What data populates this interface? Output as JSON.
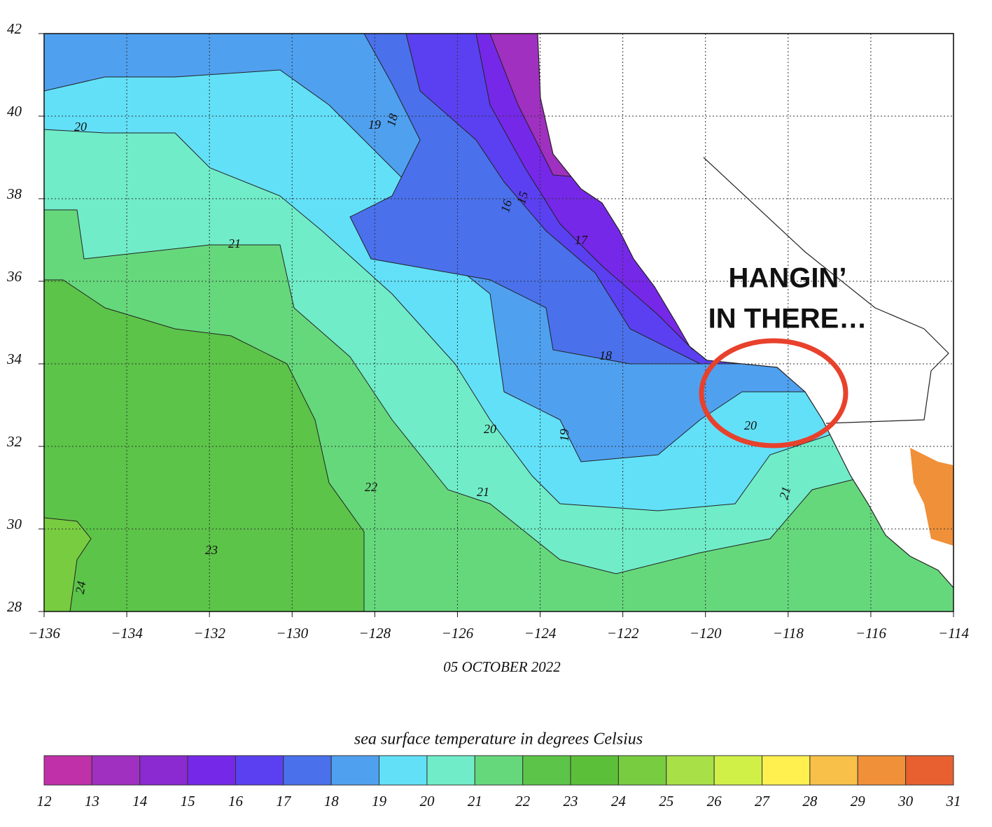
{
  "map": {
    "xlim": [
      -136,
      -114
    ],
    "ylim": [
      28,
      42
    ],
    "xticks": [
      {
        "value": -136,
        "label": "−136"
      },
      {
        "value": -134,
        "label": "−134"
      },
      {
        "value": -132,
        "label": "−132"
      },
      {
        "value": -130,
        "label": "−130"
      },
      {
        "value": -128,
        "label": "−128"
      },
      {
        "value": -126,
        "label": "−126"
      },
      {
        "value": -124,
        "label": "−124"
      },
      {
        "value": -122,
        "label": "−122"
      },
      {
        "value": -120,
        "label": "−120"
      },
      {
        "value": -118,
        "label": "−118"
      },
      {
        "value": -116,
        "label": "−116"
      },
      {
        "value": -114,
        "label": "−114"
      }
    ],
    "yticks": [
      28,
      30,
      32,
      34,
      36,
      38,
      40,
      42
    ],
    "grid": true,
    "date": "05 OCTOBER 2022",
    "contour_labels": [
      20,
      19,
      18,
      16,
      15,
      17,
      21,
      18,
      20,
      19,
      20,
      22,
      21,
      21,
      23,
      24
    ],
    "annotation": [
      "HANGIN’",
      "IN THERE…"
    ]
  },
  "colorbar": {
    "title": "sea surface temperature in degrees Celsius",
    "bounds": [
      12,
      13,
      14,
      15,
      16,
      17,
      18,
      19,
      20,
      21,
      22,
      23,
      24,
      25,
      26,
      27,
      28,
      29,
      30,
      31
    ],
    "colors": [
      "#c030a8",
      "#a030c0",
      "#8a2ad0",
      "#7628e8",
      "#5a40f0",
      "#4a70ec",
      "#50a0f0",
      "#62e0f8",
      "#70ecc8",
      "#66d87c",
      "#5cc448",
      "#5cbf3a",
      "#78cc40",
      "#a8e048",
      "#d0f048",
      "#fff050",
      "#f8c048",
      "#f09038",
      "#e86030"
    ]
  }
}
